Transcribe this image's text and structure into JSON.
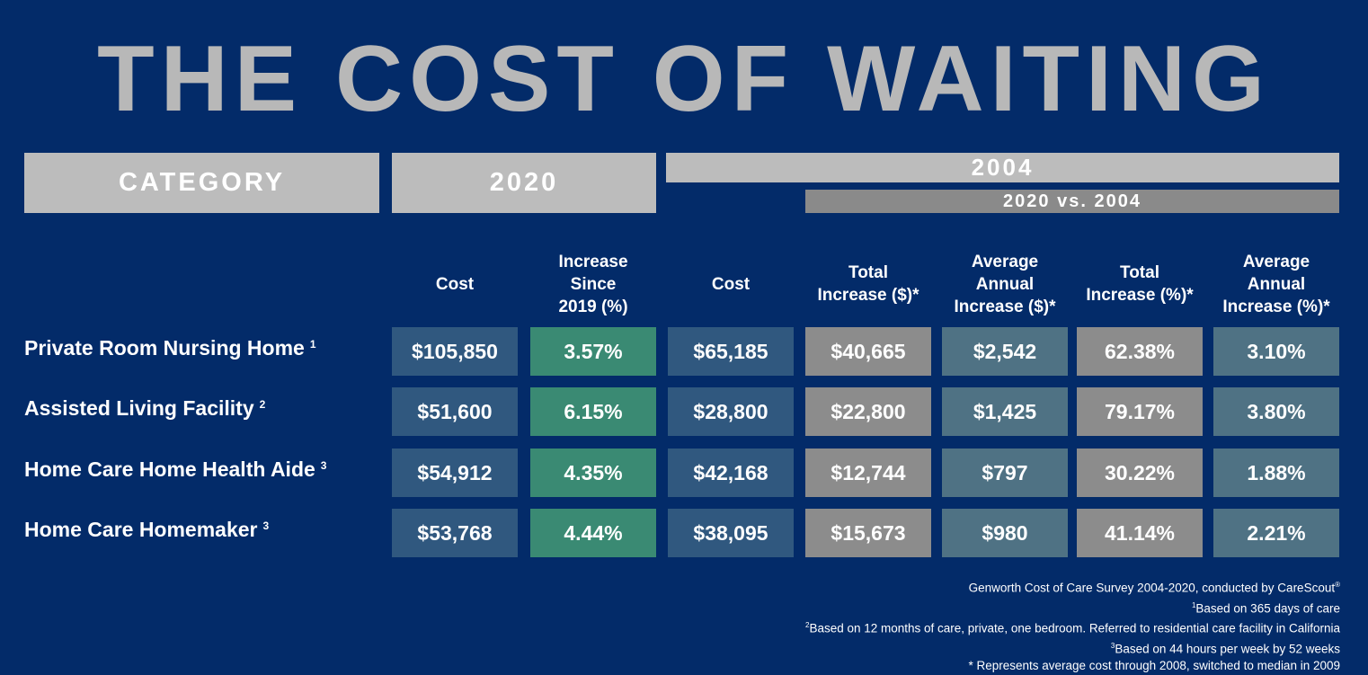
{
  "title": "THE COST OF WAITING",
  "headers": {
    "category": "CATEGORY",
    "year_2020": "2020",
    "year_2004": "2004",
    "comparison": "2020 vs. 2004"
  },
  "chart_data": {
    "type": "table",
    "title": "THE COST OF WAITING",
    "columns": [
      "Cost",
      "Increase\nSince\n2019 (%)",
      "Cost",
      "Total\nIncrease ($)*",
      "Average\nAnnual\nIncrease ($)*",
      "Total\nIncrease (%)*",
      "Average\nAnnual\nIncrease (%)*"
    ],
    "rows": [
      {
        "label": "Private Room Nursing Home",
        "note": "1",
        "values": [
          "$105,850",
          "3.57%",
          "$65,185",
          "$40,665",
          "$2,542",
          "62.38%",
          "3.10%"
        ]
      },
      {
        "label": "Assisted Living Facility",
        "note": "2",
        "values": [
          "$51,600",
          "6.15%",
          "$28,800",
          "$22,800",
          "$1,425",
          "79.17%",
          "3.80%"
        ]
      },
      {
        "label": "Home Care Home Health Aide",
        "note": "3",
        "values": [
          "$54,912",
          "4.35%",
          "$42,168",
          "$12,744",
          "$797",
          "30.22%",
          "1.88%"
        ]
      },
      {
        "label": "Home Care Homemaker",
        "note": "3",
        "values": [
          "$53,768",
          "4.44%",
          "$38,095",
          "$15,673",
          "$980",
          "41.14%",
          "2.21%"
        ]
      }
    ]
  },
  "colors": {
    "background": "#032b69",
    "header": "#bcbcbc",
    "cost": "#30587f",
    "increase_2019": "#3a8a73",
    "total": "#8c8c8c",
    "annual": "#4f7284"
  },
  "footnotes": {
    "source": "Genworth Cost of Care Survey 2004-2020, conducted by CareScout",
    "source_mark": "®",
    "notes": [
      {
        "mark": "1",
        "text": "Based on 365 days of care"
      },
      {
        "mark": "2",
        "text": "Based on 12 months of care, private, one bedroom. Referred to residential care facility in California"
      },
      {
        "mark": "3",
        "text": "Based on 44 hours per week by 52 weeks"
      }
    ],
    "asterisk": "* Represents average cost through 2008, switched to median in 2009"
  }
}
